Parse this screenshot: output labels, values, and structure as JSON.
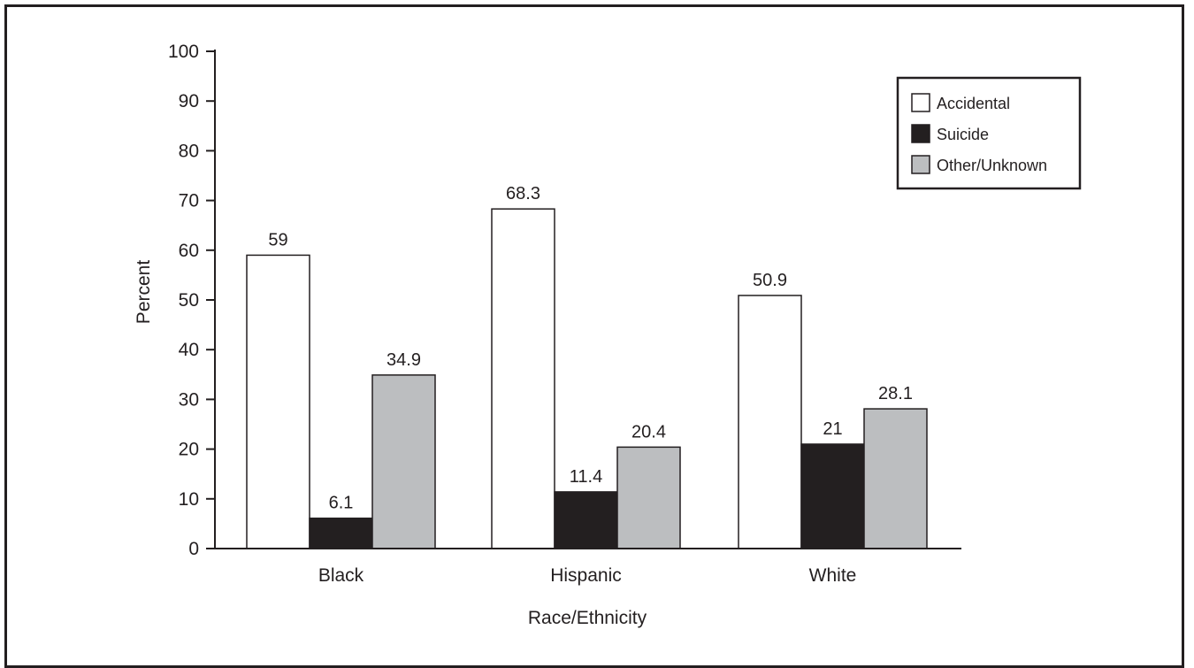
{
  "chart_data": {
    "type": "bar",
    "categories": [
      "Black",
      "Hispanic",
      "White"
    ],
    "series": [
      {
        "name": "Accidental",
        "values": [
          59,
          68.3,
          50.9
        ],
        "labels": [
          "59",
          "68.3",
          "50.9"
        ],
        "color": "#ffffff"
      },
      {
        "name": "Suicide",
        "values": [
          6.1,
          11.4,
          21
        ],
        "labels": [
          "6.1",
          "11.4",
          "21"
        ],
        "color": "#231f20"
      },
      {
        "name": "Other/Unknown",
        "values": [
          34.9,
          20.4,
          28.1
        ],
        "labels": [
          "34.9",
          "20.4",
          "28.1"
        ],
        "color": "#bcbec0"
      }
    ],
    "xlabel": "Race/Ethnicity",
    "ylabel": "Percent",
    "ylim": [
      0,
      100
    ],
    "yticks": [
      "0",
      "10",
      "20",
      "30",
      "40",
      "50",
      "60",
      "70",
      "80",
      "90",
      "100"
    ],
    "grid": false,
    "legend_position": "top-right"
  }
}
